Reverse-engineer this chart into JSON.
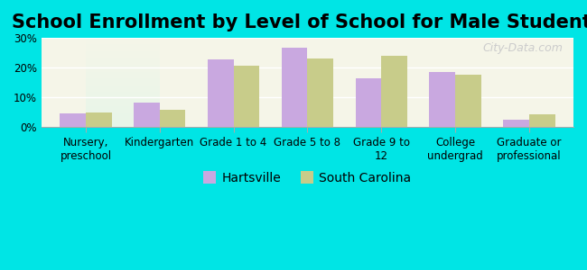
{
  "title": "School Enrollment by Level of School for Male Students",
  "categories": [
    "Nursery,\npreschool",
    "Kindergarten",
    "Grade 1 to 4",
    "Grade 5 to 8",
    "Grade 9 to\n12",
    "College\nundergrad",
    "Graduate or\nprofessional"
  ],
  "hartsville": [
    4.7,
    8.1,
    22.7,
    26.7,
    16.4,
    18.6,
    2.4
  ],
  "south_carolina": [
    4.8,
    5.8,
    20.7,
    23.0,
    24.0,
    17.7,
    4.2
  ],
  "hartsville_color": "#c9a8e0",
  "sc_color": "#c8cc8a",
  "background_color": "#00e5e5",
  "plot_bg_top": "#f5f5e8",
  "plot_bg_bottom": "#e8f5e8",
  "ylim": [
    0,
    30
  ],
  "yticks": [
    0,
    10,
    20,
    30
  ],
  "ytick_labels": [
    "0%",
    "10%",
    "20%",
    "30%"
  ],
  "legend_labels": [
    "Hartsville",
    "South Carolina"
  ],
  "watermark": "City-Data.com",
  "title_fontsize": 15,
  "tick_fontsize": 8.5,
  "legend_fontsize": 10
}
